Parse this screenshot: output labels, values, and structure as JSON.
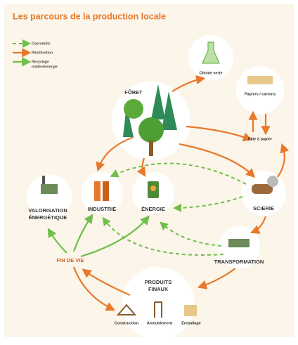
{
  "title": "Les parcours de la production locale",
  "legend": [
    {
      "label": [
        "Coproduits"
      ]
    },
    {
      "label": [
        "Réutilisation"
      ]
    },
    {
      "label": [
        "Recyclage",
        "matière/énergie"
      ]
    }
  ],
  "nodes": [
    {
      "label": [
        "FÔRET"
      ]
    },
    {
      "label": [
        "Chimie verte"
      ]
    },
    {
      "label": [
        "Papiers / cartons"
      ]
    },
    {
      "label": [
        "Pâte à papier"
      ]
    },
    {
      "label": [
        "VALORISATION",
        "ÉNERGÉTIQUE"
      ]
    },
    {
      "label": [
        "INDUSTRIE"
      ]
    },
    {
      "label": [
        "ÉNERGIE"
      ]
    },
    {
      "label": [
        "SCIERIE"
      ]
    },
    {
      "label": [
        "TRANSFORMATION"
      ]
    },
    {
      "label": [
        "FIN DE VIE"
      ]
    },
    {
      "label": [
        "PRODUITS",
        "FINAUX"
      ]
    },
    {
      "label": [
        "Construction"
      ]
    },
    {
      "label": [
        "Ameublement"
      ]
    },
    {
      "label": [
        "Emballage"
      ]
    }
  ]
}
